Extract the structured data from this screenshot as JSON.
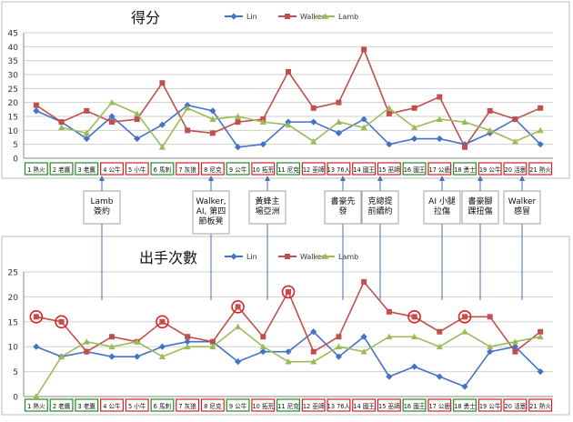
{
  "chart_data": [
    {
      "type": "line",
      "title": "得分",
      "categories": [
        "1 熱火",
        "2 老鷹",
        "3 老鷹",
        "4 公牛",
        "5 小牛",
        "6 馬刺",
        "7 灰狼",
        "8 尼克",
        "9 公牛",
        "10 拓荒",
        "11 尼克",
        "12 巫師",
        "13 76人",
        "14 國王",
        "15 巫師",
        "16 國王",
        "17 公鹿",
        "18 勇士",
        "19 公牛",
        "20 活塞",
        "21 熱火"
      ],
      "ylim": [
        0,
        45
      ],
      "yticks": [
        0,
        5,
        10,
        15,
        20,
        25,
        30,
        35,
        40,
        45
      ],
      "grid": true,
      "legend": "top",
      "series": [
        {
          "name": "Lin",
          "color": "#4472C4",
          "marker": "diamond",
          "values": [
            17,
            13,
            7,
            15,
            7,
            12,
            19,
            17,
            4,
            5,
            13,
            13,
            9,
            14,
            5,
            7,
            7,
            5,
            9,
            14,
            5
          ]
        },
        {
          "name": "Walker",
          "color": "#C0504D",
          "marker": "square",
          "values": [
            19,
            13,
            17,
            13,
            14,
            27,
            10,
            9,
            13,
            14,
            31,
            18,
            20,
            39,
            16,
            18,
            22,
            4,
            17,
            14,
            18
          ]
        },
        {
          "name": "Lamb",
          "color": "#9BBB59",
          "marker": "triangle",
          "values": [
            null,
            11,
            9,
            20,
            16,
            4,
            18,
            14,
            15,
            13,
            12,
            6,
            13,
            11,
            18,
            11,
            14,
            13,
            10,
            6,
            10
          ]
        }
      ],
      "category_label_colors": [
        "green",
        "green",
        "green",
        "red",
        "red",
        "green",
        "red",
        "red",
        "green",
        "red",
        "green",
        "red",
        "red",
        "red",
        "red",
        "green",
        "red",
        "green",
        "red",
        "red",
        "red"
      ]
    },
    {
      "type": "line",
      "title": "出手次數",
      "categories": [
        "1 熱火",
        "2 老鷹",
        "3 老鷹",
        "4 公牛",
        "5 小牛",
        "6 馬刺",
        "7 灰狼",
        "8 尼克",
        "9 公牛",
        "10 拓荒",
        "11 尼克",
        "12 巫師",
        "13 76人",
        "14 國王",
        "15 巫師",
        "16 國王",
        "17 公鹿",
        "18 勇士",
        "19 公牛",
        "20 活塞",
        "21 熱火"
      ],
      "ylim": [
        0,
        25
      ],
      "yticks": [
        0,
        5,
        10,
        15,
        20,
        25
      ],
      "grid": true,
      "legend": "top",
      "series": [
        {
          "name": "Lin",
          "color": "#4472C4",
          "marker": "diamond",
          "values": [
            10,
            8,
            9,
            8,
            8,
            10,
            11,
            11,
            7,
            9,
            9,
            13,
            8,
            12,
            4,
            6,
            4,
            2,
            9,
            10,
            5
          ]
        },
        {
          "name": "Walker",
          "color": "#C0504D",
          "marker": "square",
          "values": [
            16,
            15,
            9,
            12,
            11,
            15,
            12,
            11,
            18,
            12,
            21,
            9,
            12,
            23,
            17,
            16,
            13,
            16,
            16,
            9,
            13
          ]
        },
        {
          "name": "Lamb",
          "color": "#9BBB59",
          "marker": "triangle",
          "values": [
            0,
            8,
            11,
            10,
            11,
            8,
            10,
            10,
            14,
            10,
            7,
            7,
            10,
            9,
            12,
            12,
            10,
            13,
            10,
            11,
            12
          ]
        }
      ],
      "circled_walker_points": [
        0,
        1,
        5,
        8,
        10,
        15,
        17
      ],
      "category_label_colors": [
        "green",
        "green",
        "green",
        "red",
        "red",
        "green",
        "red",
        "red",
        "green",
        "red",
        "green",
        "red",
        "red",
        "red",
        "red",
        "green",
        "red",
        "green",
        "red",
        "red",
        "red"
      ]
    }
  ],
  "annotations": [
    {
      "label": "Lamb\n簽約",
      "game_index": 2
    },
    {
      "label": "Walker,\nAI, 第四\n節板凳",
      "game_index": 7
    },
    {
      "label": "黃蜂主\n場亞洲",
      "game_index": 9
    },
    {
      "label": "書豪先\n發",
      "game_index": 12
    },
    {
      "label": "克總提\n前續約",
      "game_index": 13
    },
    {
      "label": "AI 小腿\n拉傷",
      "game_index": 16
    },
    {
      "label": "書豪腳\n踝扭傷",
      "game_index": 17
    },
    {
      "label": "Walker\n感冒",
      "game_index": 19
    }
  ],
  "colors": {
    "green_label": "#1E8C1E",
    "red_label": "#D42020",
    "grid": "#D0D0D0",
    "axis_text": "#333333",
    "circle": "#E02020",
    "arrow": "#4A6FB5"
  }
}
